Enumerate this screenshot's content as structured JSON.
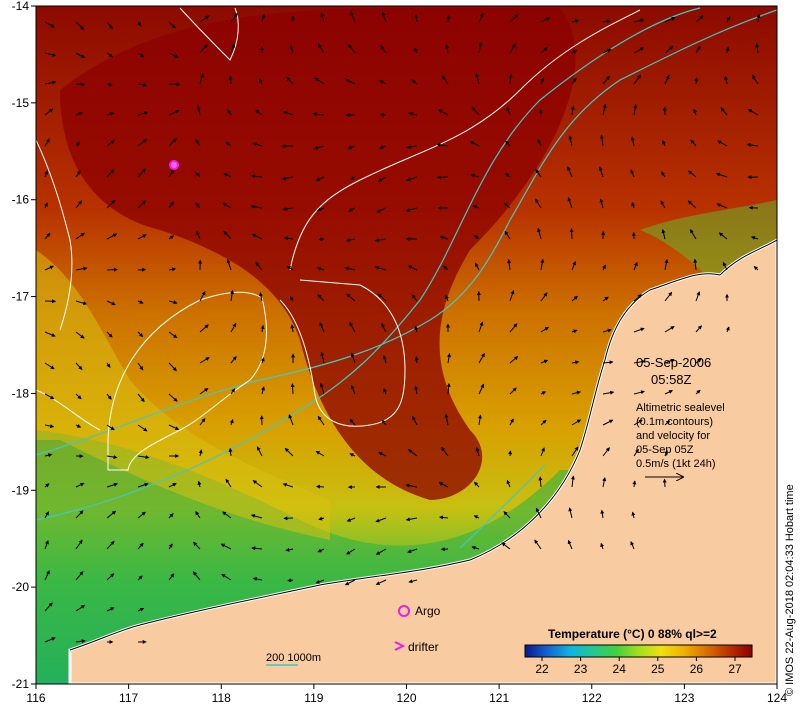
{
  "map": {
    "x_ticks": [
      "116",
      "117",
      "118",
      "119",
      "120",
      "121",
      "122",
      "123",
      "124"
    ],
    "y_ticks": [
      "-14",
      "-15",
      "-16",
      "-17",
      "-18",
      "-19",
      "-20",
      "-21"
    ],
    "date_line": "05-Sep-2006",
    "time_line": "05:58Z",
    "info_lines": [
      "Altimetric sealevel",
      "(0.1m contours)",
      "and velocity for",
      "05-Sep 05Z",
      "0.5m/s (1kt 24h)"
    ],
    "legend_argo": "Argo",
    "legend_drifter": "drifter",
    "bathy_label": "200  1000m",
    "colorbar_title": "Temperature (°C) 0 88% ql>=2",
    "colorbar_ticks": [
      "22",
      "23",
      "24",
      "25",
      "26",
      "27"
    ],
    "credit": "© IMOS 22-Aug-2018 02:04:33 Hobart time"
  },
  "colors": {
    "land": "#f9cba0",
    "argo": "#e81ee8",
    "bathy_contour": "#40c8c8",
    "sealevel_contour": "#ffffff",
    "colorbar": [
      "#0a1a8c",
      "#1464d2",
      "#10b4e0",
      "#20c890",
      "#40d040",
      "#a0e020",
      "#f0e010",
      "#f0b000",
      "#d87000",
      "#b83000",
      "#8c0000"
    ]
  }
}
